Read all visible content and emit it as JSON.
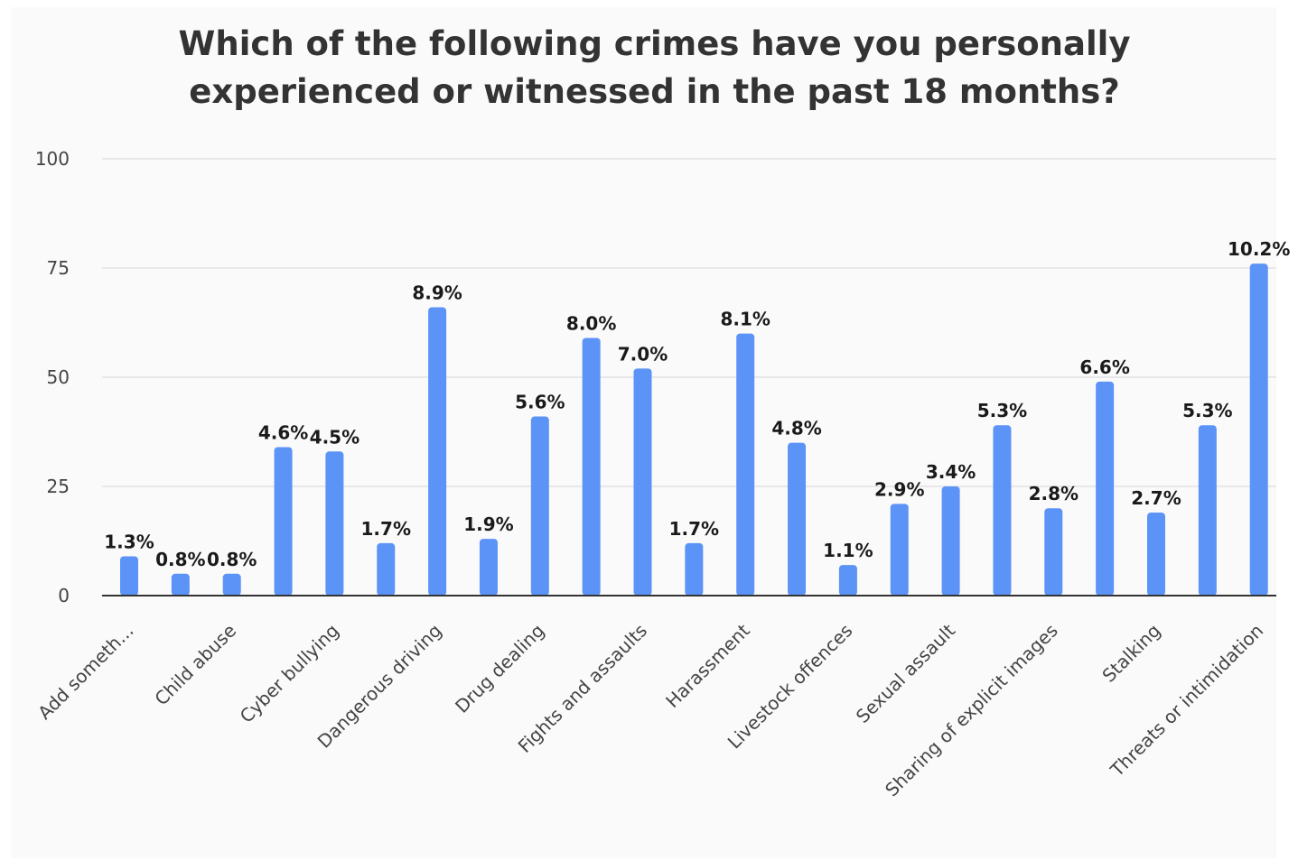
{
  "chart_data": {
    "type": "bar",
    "title_lines": [
      "Which of the following crimes have you personally",
      "experienced or witnessed in the past 18 months?"
    ],
    "xlabel": "",
    "ylabel": "",
    "ylim": [
      0,
      100
    ],
    "yticks": [
      0,
      25,
      50,
      75,
      100
    ],
    "grid": true,
    "bar_color": "#5b93f6",
    "categories": [
      "Add someth...",
      "",
      "Child abuse",
      "",
      "Cyber bullying",
      "",
      "Dangerous driving",
      "",
      "Drug dealing",
      "",
      "Fights and assaults",
      "",
      "Harassment",
      "",
      "Livestock offences",
      "",
      "Sexual assault",
      "",
      "Sharing of explicit images",
      "",
      "Stalking",
      "",
      "Threats or intimidation"
    ],
    "values": [
      9,
      5,
      5,
      34,
      33,
      12,
      66,
      13,
      41,
      59,
      52,
      12,
      60,
      35,
      7,
      21,
      25,
      39,
      20,
      49,
      19,
      39,
      76
    ],
    "data_labels": [
      "1.3%",
      "0.8%",
      "0.8%",
      "4.6%",
      "4.5%",
      "1.7%",
      "8.9%",
      "1.9%",
      "5.6%",
      "8.0%",
      "7.0%",
      "1.7%",
      "8.1%",
      "4.8%",
      "1.1%",
      "2.9%",
      "3.4%",
      "5.3%",
      "2.8%",
      "6.6%",
      "2.7%",
      "5.3%",
      "10.2%"
    ]
  }
}
